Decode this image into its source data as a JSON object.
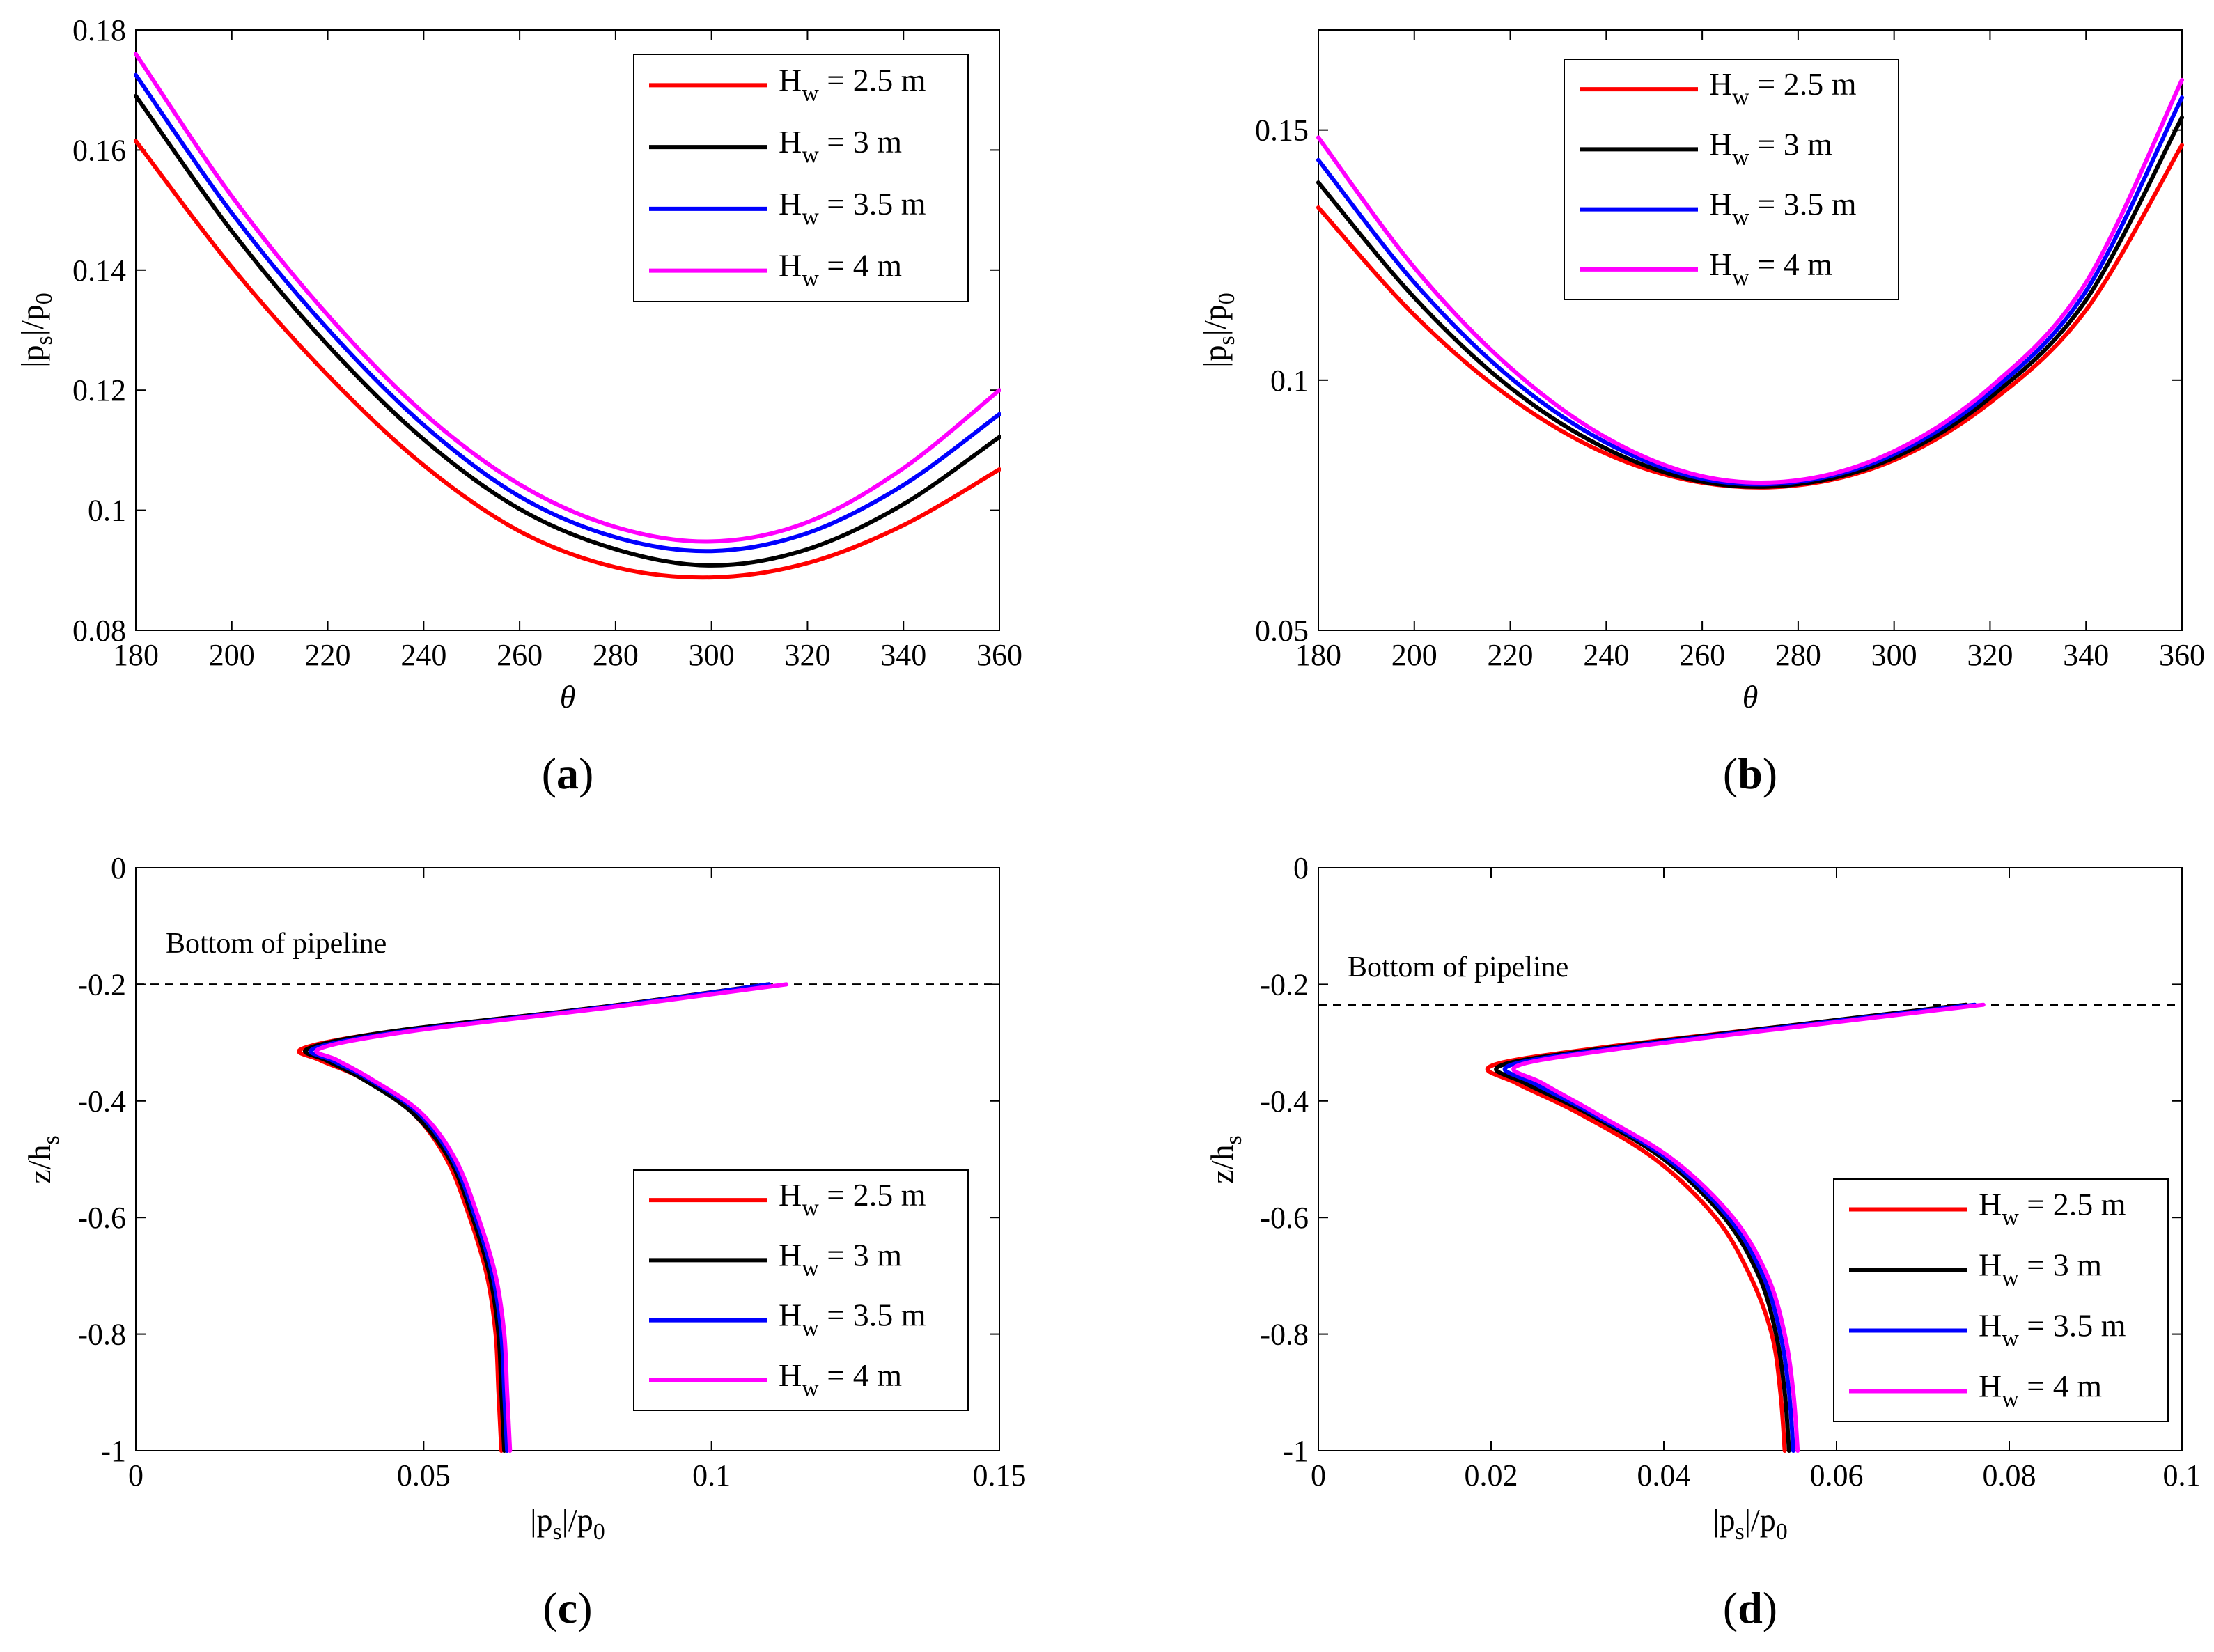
{
  "figure": {
    "captions": [
      "(a)",
      "(b)",
      "(c)",
      "(d)"
    ]
  },
  "chart_data": [
    {
      "id": "a",
      "type": "line",
      "caption": "(a)",
      "xlabel": "θ",
      "ylabel": "|p_s|/p_0",
      "xlim": [
        180,
        360
      ],
      "ylim": [
        0.08,
        0.18
      ],
      "xticks": [
        180,
        200,
        220,
        240,
        260,
        280,
        300,
        320,
        340,
        360
      ],
      "yticks": [
        0.08,
        0.1,
        0.12,
        0.14,
        0.16,
        0.18
      ],
      "xtick_labels": [
        "180",
        "200",
        "220",
        "240",
        "260",
        "280",
        "300",
        "320",
        "340",
        "360"
      ],
      "ytick_labels": [
        "0.08",
        "0.1",
        "0.12",
        "0.14",
        "0.16",
        "0.18"
      ],
      "legend_position": "top-right",
      "x": [
        180,
        200,
        220,
        240,
        260,
        280,
        300,
        320,
        340,
        360
      ],
      "series": [
        {
          "name": "H_w = 2.5 m",
          "label": "H",
          "sub": "w",
          "suffix": " = 2.5 m",
          "color": "#ff0000",
          "values": [
            0.1615,
            0.1405,
            0.1225,
            0.1075,
            0.0965,
            0.0905,
            0.0888,
            0.0912,
            0.0975,
            0.1068
          ]
        },
        {
          "name": "H_w = 3 m",
          "label": "H",
          "sub": "w",
          "suffix": " = 3 m",
          "color": "#000000",
          "values": [
            0.169,
            0.1465,
            0.1275,
            0.1118,
            0.1002,
            0.0935,
            0.0908,
            0.0935,
            0.101,
            0.1122
          ]
        },
        {
          "name": "H_w = 3.5 m",
          "label": "H",
          "sub": "w",
          "suffix": " = 3.5 m",
          "color": "#0000ff",
          "values": [
            0.1725,
            0.1495,
            0.1302,
            0.1142,
            0.1023,
            0.0955,
            0.0932,
            0.0962,
            0.1042,
            0.116
          ]
        },
        {
          "name": "H_w = 4 m",
          "label": "H",
          "sub": "w",
          "suffix": " = 4 m",
          "color": "#ff00ff",
          "values": [
            0.176,
            0.1523,
            0.1325,
            0.1162,
            0.1043,
            0.0972,
            0.0948,
            0.098,
            0.107,
            0.12
          ]
        }
      ]
    },
    {
      "id": "b",
      "type": "line",
      "caption": "(b)",
      "xlabel": "θ",
      "ylabel": "|p_s|/p_0",
      "xlim": [
        180,
        360
      ],
      "ylim": [
        0.05,
        0.17
      ],
      "xticks": [
        180,
        200,
        220,
        240,
        260,
        280,
        300,
        320,
        340,
        360
      ],
      "yticks": [
        0.05,
        0.1,
        0.15
      ],
      "xtick_labels": [
        "180",
        "200",
        "220",
        "240",
        "260",
        "280",
        "300",
        "320",
        "340",
        "360"
      ],
      "ytick_labels": [
        "0.05",
        "0.1",
        "0.15"
      ],
      "legend_position": "top-center",
      "x": [
        180,
        200,
        220,
        240,
        260,
        280,
        300,
        320,
        340,
        360
      ],
      "series": [
        {
          "name": "H_w = 2.5 m",
          "label": "H",
          "sub": "w",
          "suffix": " = 2.5 m",
          "color": "#ff0000",
          "values": [
            0.1345,
            0.113,
            0.0965,
            0.0853,
            0.0795,
            0.079,
            0.084,
            0.0955,
            0.114,
            0.147
          ]
        },
        {
          "name": "H_w = 3 m",
          "label": "H",
          "sub": "w",
          "suffix": " = 3 m",
          "color": "#000000",
          "values": [
            0.1395,
            0.1165,
            0.0985,
            0.0863,
            0.0797,
            0.0792,
            0.0845,
            0.0965,
            0.116,
            0.1525
          ]
        },
        {
          "name": "H_w = 3.5 m",
          "label": "H",
          "sub": "w",
          "suffix": " = 3.5 m",
          "color": "#0000ff",
          "values": [
            0.144,
            0.1195,
            0.1005,
            0.0875,
            0.0803,
            0.0797,
            0.0852,
            0.0975,
            0.1178,
            0.1565
          ]
        },
        {
          "name": "H_w = 4 m",
          "label": "H",
          "sub": "w",
          "suffix": " = 4 m",
          "color": "#ff00ff",
          "values": [
            0.1485,
            0.1225,
            0.1025,
            0.0885,
            0.0808,
            0.08,
            0.0858,
            0.0985,
            0.1195,
            0.16
          ]
        }
      ]
    },
    {
      "id": "c",
      "type": "line",
      "orientation": "profile",
      "caption": "(c)",
      "xlabel": "|p_s|/p_0",
      "ylabel": "z/h_s",
      "xlim": [
        0,
        0.15
      ],
      "ylim": [
        -1,
        0
      ],
      "xticks": [
        0,
        0.05,
        0.1,
        0.15
      ],
      "yticks": [
        -1,
        -0.8,
        -0.6,
        -0.4,
        -0.2,
        0
      ],
      "xtick_labels": [
        "0",
        "0.05",
        "0.1",
        "0.15"
      ],
      "ytick_labels": [
        "-1",
        "-0.8",
        "-0.6",
        "-0.4",
        "-0.2",
        "0"
      ],
      "legend_position": "bottom-right",
      "annotation": {
        "text": "Bottom of pipeline",
        "z": -0.2
      },
      "z": [
        -0.2,
        -0.24,
        -0.28,
        -0.31,
        -0.33,
        -0.36,
        -0.42,
        -0.5,
        -0.6,
        -0.7,
        -0.8,
        -0.9,
        -1.0
      ],
      "series": [
        {
          "name": "H_w = 2.5 m",
          "label": "H",
          "sub": "w",
          "suffix": " = 2.5 m",
          "color": "#ff0000",
          "values": [
            0.11,
            0.08,
            0.045,
            0.029,
            0.032,
            0.039,
            0.048,
            0.054,
            0.058,
            0.061,
            0.0625,
            0.063,
            0.0635
          ]
        },
        {
          "name": "H_w = 3 m",
          "label": "H",
          "sub": "w",
          "suffix": " = 3 m",
          "color": "#000000",
          "values": [
            0.11,
            0.08,
            0.045,
            0.03,
            0.033,
            0.039,
            0.048,
            0.0545,
            0.0585,
            0.0615,
            0.063,
            0.0635,
            0.064
          ]
        },
        {
          "name": "H_w = 3.5 m",
          "label": "H",
          "sub": "w",
          "suffix": " = 3.5 m",
          "color": "#0000ff",
          "values": [
            0.11,
            0.081,
            0.047,
            0.031,
            0.034,
            0.04,
            0.049,
            0.055,
            0.059,
            0.062,
            0.0635,
            0.064,
            0.0645
          ]
        },
        {
          "name": "H_w = 4 m",
          "label": "H",
          "sub": "w",
          "suffix": " = 4 m",
          "color": "#ff00ff",
          "values": [
            0.113,
            0.082,
            0.048,
            0.032,
            0.035,
            0.0405,
            0.0495,
            0.0555,
            0.0595,
            0.0625,
            0.064,
            0.0645,
            0.065
          ]
        }
      ]
    },
    {
      "id": "d",
      "type": "line",
      "orientation": "profile",
      "caption": "(d)",
      "xlabel": "|p_s|/p_0",
      "ylabel": "z/h_s",
      "xlim": [
        0,
        0.1
      ],
      "ylim": [
        -1,
        0
      ],
      "xticks": [
        0,
        0.02,
        0.04,
        0.06,
        0.08,
        0.1
      ],
      "yticks": [
        -1,
        -0.8,
        -0.6,
        -0.4,
        -0.2,
        0
      ],
      "xtick_labels": [
        "0",
        "0.02",
        "0.04",
        "0.06",
        "0.08",
        "0.1"
      ],
      "ytick_labels": [
        "-1",
        "-0.8",
        "-0.6",
        "-0.4",
        "-0.2",
        "0"
      ],
      "legend_position": "bottom-right",
      "annotation": {
        "text": "Bottom of pipeline",
        "z": -0.235
      },
      "z": [
        -0.235,
        -0.27,
        -0.31,
        -0.34,
        -0.37,
        -0.42,
        -0.5,
        -0.6,
        -0.7,
        -0.8,
        -0.9,
        -1.0
      ],
      "series": [
        {
          "name": "H_w = 2.5 m",
          "label": "H",
          "sub": "w",
          "suffix": " = 2.5 m",
          "color": "#ff0000",
          "values": [
            0.075,
            0.055,
            0.032,
            0.02,
            0.023,
            0.03,
            0.039,
            0.046,
            0.05,
            0.0525,
            0.0535,
            0.054
          ]
        },
        {
          "name": "H_w = 3 m",
          "label": "H",
          "sub": "w",
          "suffix": " = 3 m",
          "color": "#000000",
          "values": [
            0.075,
            0.055,
            0.033,
            0.021,
            0.024,
            0.031,
            0.04,
            0.047,
            0.051,
            0.053,
            0.054,
            0.0545
          ]
        },
        {
          "name": "H_w = 3.5 m",
          "label": "H",
          "sub": "w",
          "suffix": " = 3.5 m",
          "color": "#0000ff",
          "values": [
            0.076,
            0.056,
            0.034,
            0.022,
            0.025,
            0.0315,
            0.0405,
            0.0475,
            0.0515,
            0.0535,
            0.0545,
            0.055
          ]
        },
        {
          "name": "H_w = 4 m",
          "label": "H",
          "sub": "w",
          "suffix": " = 4 m",
          "color": "#ff00ff",
          "values": [
            0.077,
            0.057,
            0.035,
            0.023,
            0.026,
            0.032,
            0.041,
            0.048,
            0.052,
            0.054,
            0.055,
            0.0555
          ]
        }
      ]
    }
  ]
}
